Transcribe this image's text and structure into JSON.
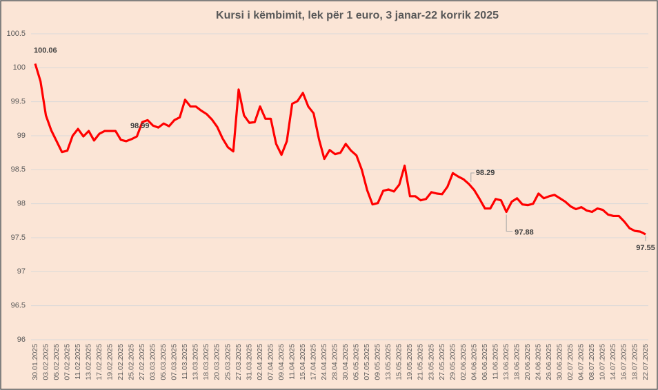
{
  "chart_data": {
    "type": "line",
    "title": "Kursi i këmbimit, lek për 1 euro, 3 janar-22 korrik 2025",
    "categories": [
      "30.01.2025",
      null,
      "03.02.2025",
      null,
      "05.02.2025",
      null,
      "07.02.2025",
      null,
      "11.02.2025",
      null,
      "13.02.2025",
      null,
      "17.02.2025",
      null,
      "19.02.2025",
      null,
      "21.02.2025",
      null,
      "25.02.2025",
      null,
      "27.02.2025",
      null,
      "03.03.2025",
      null,
      "05.03.2025",
      null,
      "07.03.2025",
      null,
      "11.03.2025",
      null,
      "13.03.2025",
      null,
      "18.03.2025",
      null,
      "20.03.2025",
      null,
      "25.03.2025",
      null,
      "27.03.2025",
      null,
      "31.03.2025",
      null,
      "02.04.2025",
      null,
      "07.04.2025",
      null,
      "09.04.2025",
      null,
      "11.04.2025",
      null,
      "15.04.2025",
      null,
      "17.04.2025",
      null,
      "24.04.2025",
      null,
      "28.04.2025",
      null,
      "30.04.2025",
      null,
      "05.05.2025",
      null,
      "07.05.2025",
      null,
      "09.05.2025",
      null,
      "13.05.2025",
      null,
      "15.05.2025",
      null,
      "19.05.2025",
      null,
      "21.05.2025",
      null,
      "23.05.2025",
      null,
      "27.05.2025",
      null,
      "29.05.2025",
      null,
      "02.06.2025",
      null,
      "04.06.2025",
      null,
      "06.06.2025",
      null,
      "11.06.2025",
      null,
      "13.06.2025",
      null,
      "18.06.2025",
      null,
      "20.06.2025",
      null,
      "24.06.2025",
      null,
      "26.06.2025",
      null,
      "30.06.2025",
      null,
      "02.07.2025",
      null,
      "04.07.2025",
      null,
      "08.07.2025",
      null,
      "10.07.2025",
      null,
      "14.07.2025",
      null,
      "16.07.2025",
      null,
      "18.07.2025",
      null,
      "22.07.2025"
    ],
    "values": [
      100.06,
      99.8,
      99.3,
      99.08,
      98.92,
      98.76,
      98.78,
      99.0,
      99.1,
      98.99,
      99.07,
      98.93,
      99.03,
      99.07,
      99.07,
      99.07,
      98.94,
      98.92,
      98.95,
      98.99,
      99.2,
      99.23,
      99.15,
      99.12,
      99.18,
      99.14,
      99.23,
      99.27,
      99.53,
      99.43,
      99.43,
      99.37,
      99.32,
      99.24,
      99.13,
      98.96,
      98.83,
      98.77,
      99.68,
      99.3,
      99.19,
      99.2,
      99.43,
      99.25,
      99.25,
      98.88,
      98.72,
      98.92,
      99.47,
      99.51,
      99.63,
      99.43,
      99.33,
      98.95,
      98.66,
      98.79,
      98.73,
      98.75,
      98.88,
      98.78,
      98.71,
      98.5,
      98.2,
      97.99,
      98.01,
      98.19,
      98.21,
      98.18,
      98.28,
      98.56,
      98.11,
      98.11,
      98.05,
      98.07,
      98.17,
      98.15,
      98.14,
      98.25,
      98.45,
      98.4,
      98.36,
      98.29,
      98.2,
      98.07,
      97.93,
      97.93,
      98.07,
      98.05,
      97.88,
      98.03,
      98.08,
      97.99,
      97.98,
      98.0,
      98.15,
      98.08,
      98.11,
      98.13,
      98.08,
      98.03,
      97.96,
      97.92,
      97.95,
      97.9,
      97.88,
      97.93,
      97.91,
      97.84,
      97.82,
      97.82,
      97.74,
      97.64,
      97.6,
      97.59,
      97.55
    ],
    "value_labels": [
      "100.06",
      null,
      null,
      null,
      null,
      null,
      null,
      null,
      null,
      null,
      null,
      null,
      null,
      null,
      null,
      null,
      null,
      null,
      null,
      "98.99",
      null,
      null,
      null,
      null,
      null,
      null,
      null,
      null,
      null,
      null,
      null,
      null,
      null,
      null,
      null,
      null,
      null,
      null,
      null,
      null,
      null,
      null,
      null,
      null,
      null,
      null,
      null,
      null,
      null,
      null,
      null,
      null,
      null,
      null,
      null,
      null,
      null,
      null,
      null,
      null,
      null,
      null,
      null,
      null,
      null,
      null,
      null,
      null,
      null,
      null,
      null,
      null,
      null,
      null,
      null,
      null,
      null,
      null,
      null,
      null,
      null,
      "98.29",
      null,
      null,
      null,
      null,
      null,
      null,
      "97.88",
      null,
      null,
      null,
      null,
      null,
      null,
      null,
      null,
      null,
      null,
      null,
      null,
      null,
      null,
      null,
      null,
      null,
      null,
      null,
      null,
      null,
      null,
      null,
      null,
      null,
      "97.55"
    ],
    "color": "#ff0000",
    "ylim": [
      96,
      100.5
    ],
    "yticks": [
      96,
      96.5,
      97,
      97.5,
      98,
      98.5,
      99,
      99.5,
      100,
      100.5
    ],
    "grid": true
  }
}
